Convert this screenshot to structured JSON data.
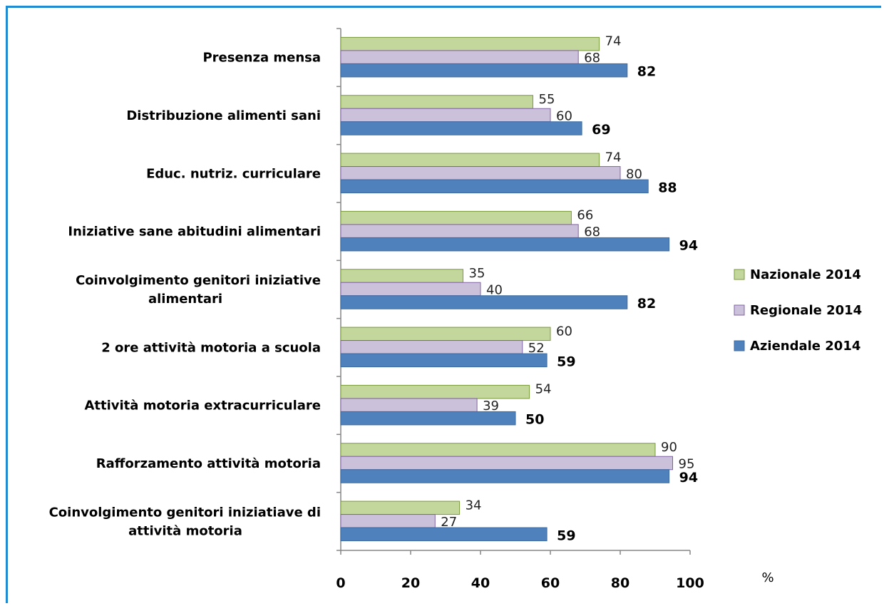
{
  "chart_data": {
    "type": "bar",
    "orientation": "horizontal",
    "categories": [
      [
        "Presenza mensa"
      ],
      [
        "Distribuzione alimenti sani"
      ],
      [
        "Educ. nutriz. curriculare"
      ],
      [
        "Iniziative sane abitudini alimentari"
      ],
      [
        "Coinvolgimento genitori iniziative",
        "alimentari"
      ],
      [
        "2 ore attività motoria a scuola"
      ],
      [
        "Attività motoria extracurriculare"
      ],
      [
        "Rafforzamento attività motoria"
      ],
      [
        "Coinvolgimento genitori iniziatiave di",
        "attività motoria"
      ]
    ],
    "series": [
      {
        "name": "Nazionale 2014",
        "color": "#c3d69b",
        "stroke": "#7a9a3c",
        "values": [
          74,
          55,
          74,
          66,
          35,
          60,
          54,
          90,
          34
        ],
        "label_style": "normal"
      },
      {
        "name": "Regionale 2014",
        "color": "#ccc1da",
        "stroke": "#8064a2",
        "values": [
          68,
          60,
          80,
          68,
          40,
          52,
          39,
          95,
          27
        ],
        "label_style": "normal"
      },
      {
        "name": "Aziendale 2014",
        "color": "#4f81bd",
        "stroke": "#3c6aa0",
        "values": [
          82,
          69,
          88,
          94,
          82,
          59,
          50,
          94,
          59
        ],
        "label_style": "bold"
      }
    ],
    "x_ticks": [
      0,
      20,
      40,
      60,
      80,
      100
    ],
    "xlim": [
      0,
      100
    ],
    "xlabel": "%",
    "grid": false,
    "legend_position": "right"
  }
}
